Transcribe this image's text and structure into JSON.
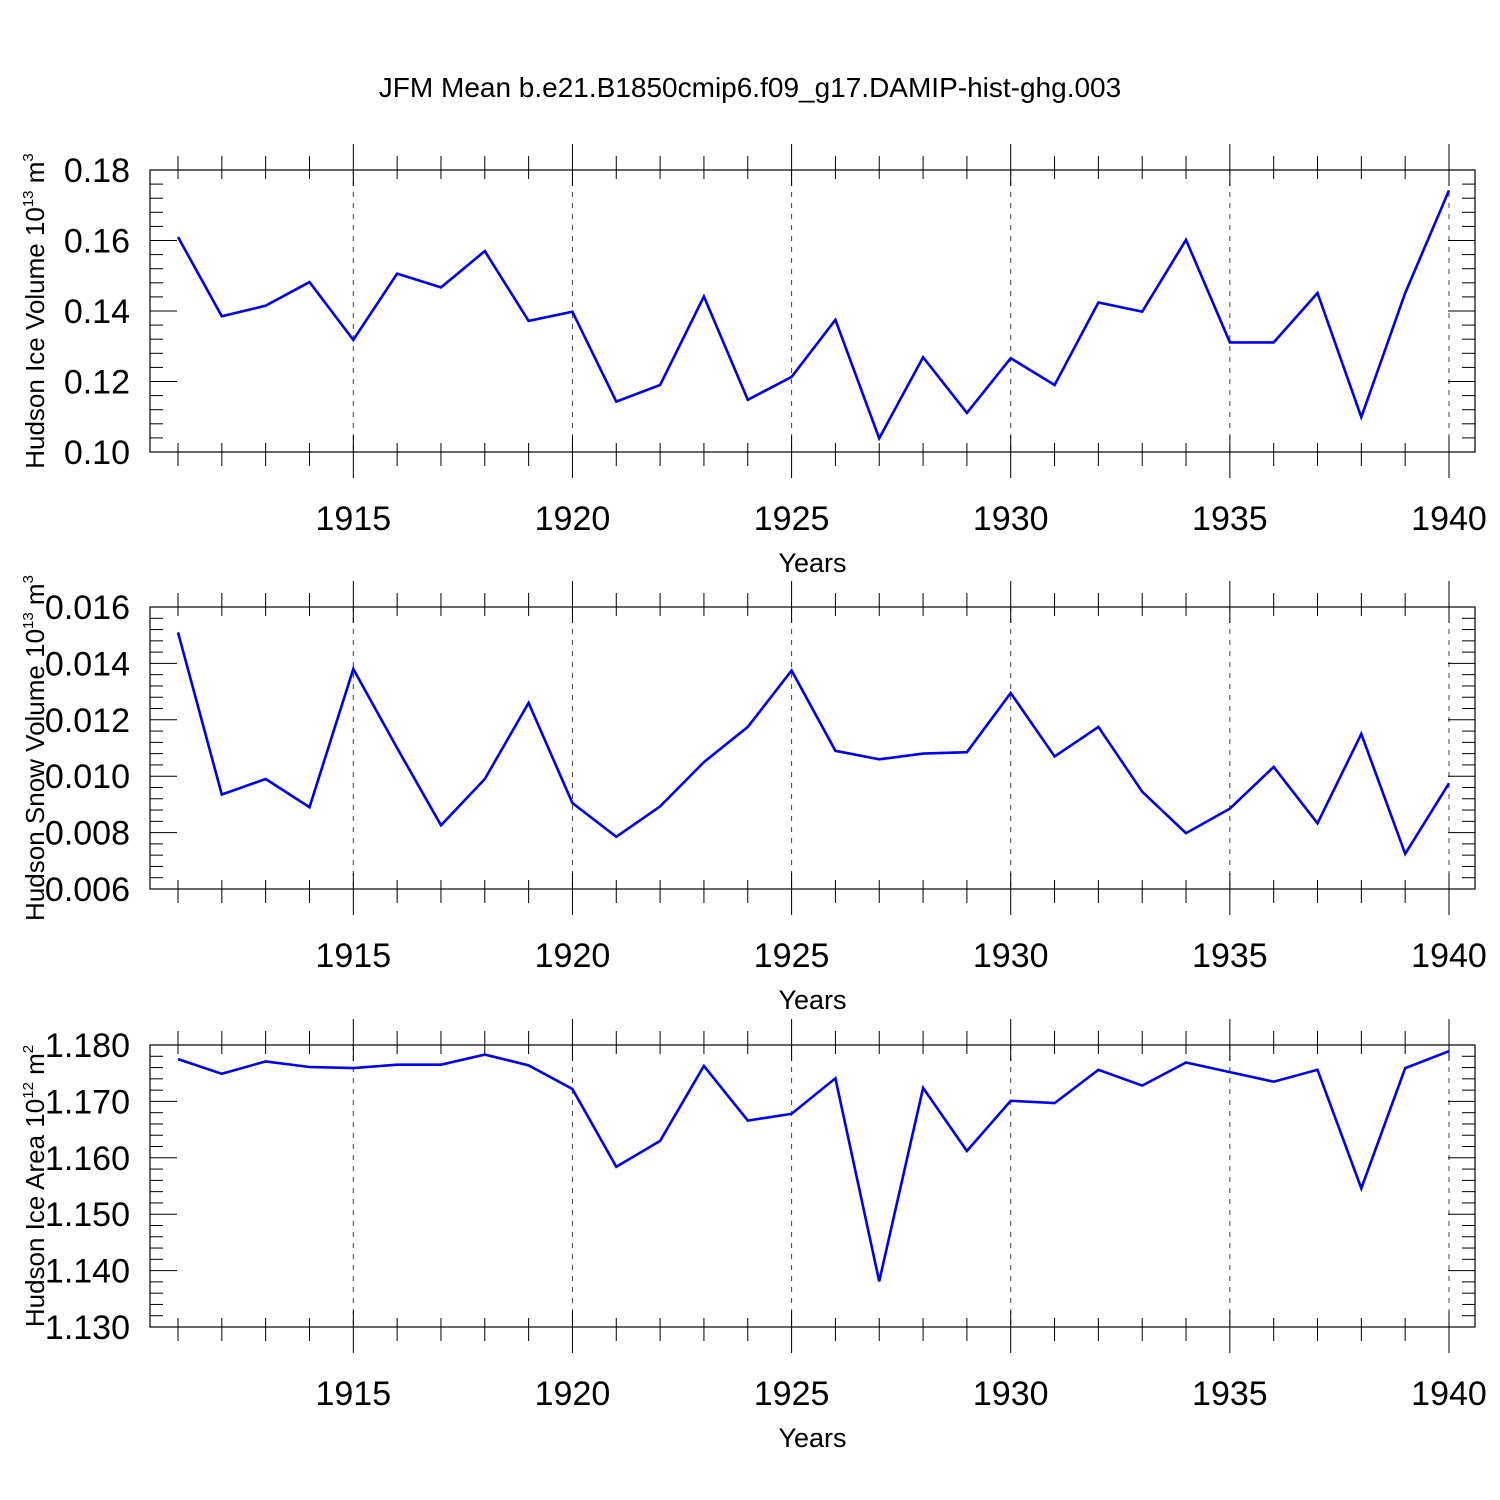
{
  "chart_data": [
    {
      "type": "line",
      "title": "JFM Mean b.e21.B1850cmip6.f09_g17.DAMIP-hist-ghg.003",
      "xlabel": "Years",
      "ylabel": {
        "prefix": "Hudson Ice Volume 10",
        "exp": "13",
        "unit": " m",
        "unit_exp": "3"
      },
      "xlim": [
        1911,
        1940
      ],
      "ylim": [
        0.1,
        0.18
      ],
      "x_ticks": [
        1915,
        1920,
        1925,
        1930,
        1935,
        1940
      ],
      "y_ticks": [
        "0.10",
        "0.12",
        "0.14",
        "0.16",
        "0.18"
      ],
      "series_color": "#0000ee",
      "series": [
        {
          "name": "ice-volume",
          "x": [
            1911,
            1912,
            1913,
            1914,
            1915,
            1916,
            1917,
            1918,
            1919,
            1920,
            1921,
            1922,
            1923,
            1924,
            1925,
            1926,
            1927,
            1928,
            1929,
            1930,
            1931,
            1932,
            1933,
            1934,
            1935,
            1936,
            1937,
            1938,
            1939,
            1940
          ],
          "values": [
            0.161,
            0.1385,
            0.1415,
            0.1482,
            0.1318,
            0.1506,
            0.1467,
            0.157,
            0.1372,
            0.1398,
            0.1143,
            0.119,
            0.1441,
            0.1148,
            0.1213,
            0.1375,
            0.1039,
            0.1269,
            0.1111,
            0.1266,
            0.119,
            0.1424,
            0.1398,
            0.1602,
            0.1311,
            0.1311,
            0.1451,
            0.1099,
            0.1451,
            0.1742
          ]
        }
      ]
    },
    {
      "type": "line",
      "title": "",
      "xlabel": "Years",
      "ylabel": {
        "prefix": "Hudson Snow Volume 10",
        "exp": "13",
        "unit": " m",
        "unit_exp": "3"
      },
      "xlim": [
        1911,
        1940
      ],
      "ylim": [
        0.006,
        0.016
      ],
      "x_ticks": [
        1915,
        1920,
        1925,
        1930,
        1935,
        1940
      ],
      "y_ticks": [
        "0.006",
        "0.008",
        "0.010",
        "0.012",
        "0.014",
        "0.016"
      ],
      "series_color": "#0000ee",
      "series": [
        {
          "name": "snow-volume",
          "x": [
            1911,
            1912,
            1913,
            1914,
            1915,
            1916,
            1917,
            1918,
            1919,
            1920,
            1921,
            1922,
            1923,
            1924,
            1925,
            1926,
            1927,
            1928,
            1929,
            1930,
            1931,
            1932,
            1933,
            1934,
            1935,
            1936,
            1937,
            1938,
            1939,
            1940
          ],
          "values": [
            0.0151,
            0.00935,
            0.0099,
            0.0089,
            0.0138,
            0.011,
            0.00826,
            0.0099,
            0.0126,
            0.00905,
            0.00785,
            0.00893,
            0.0105,
            0.01175,
            0.01375,
            0.0109,
            0.0106,
            0.0108,
            0.01085,
            0.01295,
            0.0107,
            0.01175,
            0.00945,
            0.00798,
            0.00885,
            0.01033,
            0.00833,
            0.0115,
            0.00725,
            0.00975
          ]
        }
      ]
    },
    {
      "type": "line",
      "title": "",
      "xlabel": "Years",
      "ylabel": {
        "prefix": "Hudson Ice Area 10",
        "exp": "12",
        "unit": " m",
        "unit_exp": "2"
      },
      "xlim": [
        1911,
        1940
      ],
      "ylim": [
        1.13,
        1.18
      ],
      "x_ticks": [
        1915,
        1920,
        1925,
        1930,
        1935,
        1940
      ],
      "y_ticks": [
        "1.130",
        "1.140",
        "1.150",
        "1.160",
        "1.170",
        "1.180"
      ],
      "series_color": "#0000ee",
      "series": [
        {
          "name": "ice-area",
          "x": [
            1911,
            1912,
            1913,
            1914,
            1915,
            1916,
            1917,
            1918,
            1919,
            1920,
            1921,
            1922,
            1923,
            1924,
            1925,
            1926,
            1927,
            1928,
            1929,
            1930,
            1931,
            1932,
            1933,
            1934,
            1935,
            1936,
            1937,
            1938,
            1939,
            1940
          ],
          "values": [
            1.1775,
            1.1749,
            1.1771,
            1.1761,
            1.1759,
            1.1765,
            1.1765,
            1.1783,
            1.1764,
            1.1722,
            1.1584,
            1.163,
            1.1763,
            1.1666,
            1.1678,
            1.1741,
            1.1381,
            1.1724,
            1.1612,
            1.1701,
            1.1697,
            1.1756,
            1.1728,
            1.1769,
            1.1752,
            1.1735,
            1.1756,
            1.1546,
            1.1759,
            1.1789
          ]
        }
      ]
    }
  ]
}
